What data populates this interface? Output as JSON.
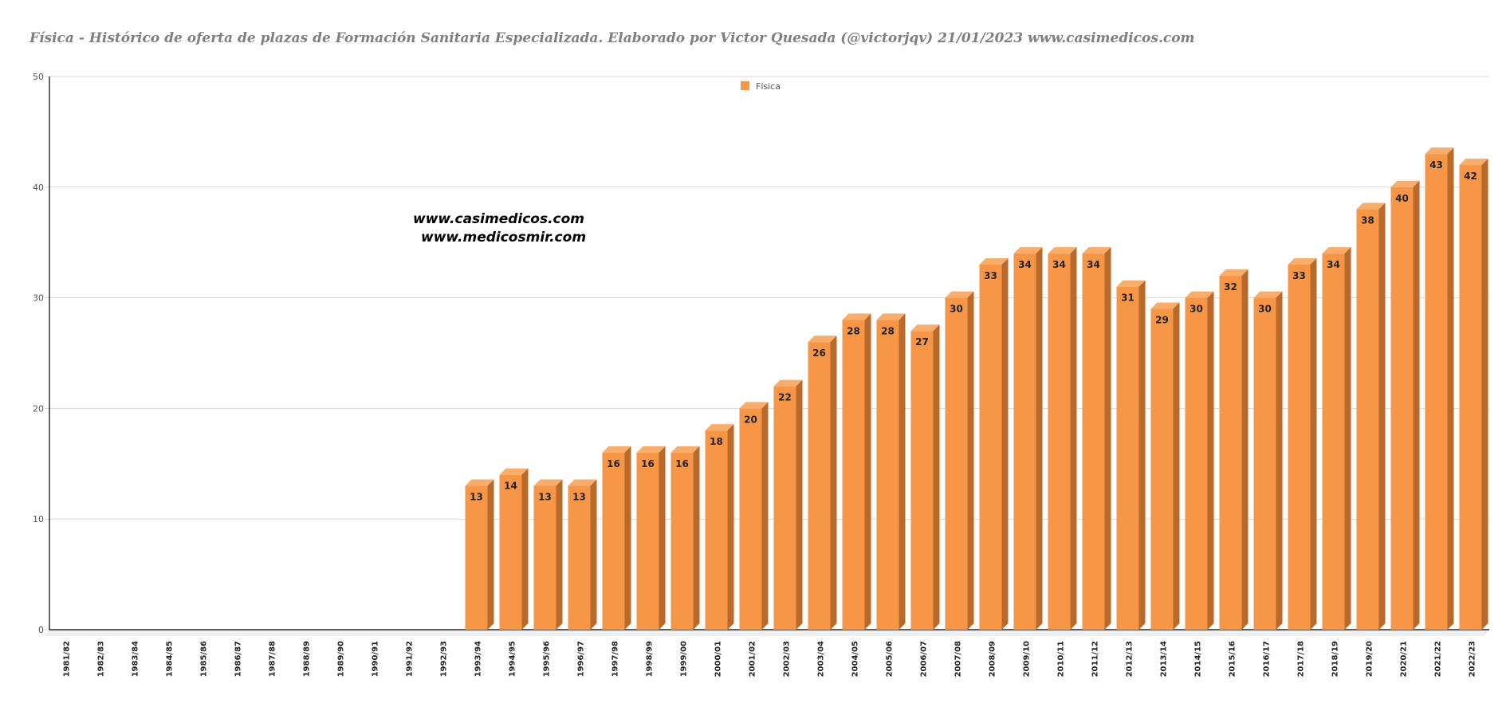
{
  "title": "Física - Histórico de oferta de plazas de Formación Sanitaria Especializada. Elaborado por Victor Quesada (@victorjqv)  21/01/2023 www.casimedicos.com",
  "watermark": {
    "line1": "www.casimedicos.com",
    "line2": "www.medicosmir.com"
  },
  "colors": {
    "bar_front": "#f79646",
    "bar_top": "#f9ad6b",
    "bar_side": "#b8692c",
    "grid": "#d9d9d9",
    "axis": "#7f7f7f"
  },
  "chart_data": {
    "type": "bar",
    "title": "Física - Histórico de oferta de plazas de Formación Sanitaria Especializada. Elaborado por Victor Quesada (@victorjqv)  21/01/2023 www.casimedicos.com",
    "xlabel": "",
    "ylabel": "",
    "ylim": [
      0,
      50
    ],
    "yticks": [
      0,
      10,
      20,
      30,
      40,
      50
    ],
    "grid": true,
    "legend_position": "top-center",
    "categories": [
      "1981/82",
      "1982/83",
      "1983/84",
      "1984/85",
      "1985/86",
      "1986/87",
      "1987/88",
      "1988/89",
      "1989/90",
      "1990/91",
      "1991/92",
      "1992/93",
      "1993/94",
      "1994/95",
      "1995/96",
      "1996/97",
      "1997/98",
      "1998/99",
      "1999/00",
      "2000/01",
      "2001/02",
      "2002/03",
      "2003/04",
      "2004/05",
      "2005/06",
      "2006/07",
      "2007/08",
      "2008/09",
      "2009/10",
      "2010/11",
      "2011/12",
      "2012/13",
      "2013/14",
      "2014/15",
      "2015/16",
      "2016/17",
      "2017/18",
      "2018/19",
      "2019/20",
      "2020/21",
      "2021/22",
      "2022/23"
    ],
    "series": [
      {
        "name": "Física",
        "values": [
          null,
          null,
          null,
          null,
          null,
          null,
          null,
          null,
          null,
          null,
          null,
          null,
          13,
          14,
          13,
          13,
          16,
          16,
          16,
          18,
          20,
          22,
          26,
          28,
          28,
          27,
          30,
          33,
          34,
          34,
          34,
          31,
          29,
          30,
          32,
          30,
          33,
          34,
          38,
          40,
          43,
          42
        ]
      }
    ]
  }
}
